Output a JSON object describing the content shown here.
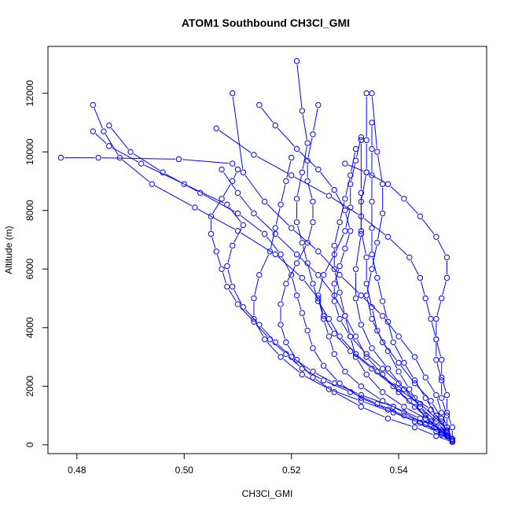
{
  "chart_data": {
    "type": "scatter",
    "title": "ATOM1 Southbound CH3Cl_GMI",
    "xlabel": "CH3Cl_GMI",
    "ylabel": "Altitude (m)",
    "xlim": [
      0.4746,
      0.5564
    ],
    "ylim": [
      -300,
      13600
    ],
    "xticks": [
      0.48,
      0.5,
      0.52,
      0.54
    ],
    "xtick_labels": [
      "0.48",
      "0.50",
      "0.52",
      "0.54"
    ],
    "yticks": [
      0,
      2000,
      4000,
      6000,
      8000,
      10000,
      12000
    ],
    "ytick_labels": [
      "0",
      "2000",
      "4000",
      "6000",
      "8000",
      "10000",
      "12000"
    ],
    "series_color": "#0000ff",
    "series": [
      {
        "x": [
          0.55,
          0.549,
          0.546,
          0.541,
          0.536,
          0.531,
          0.526,
          0.522,
          0.519,
          0.516,
          0.513,
          0.51,
          0.508,
          0.507,
          0.506,
          0.505,
          0.505,
          0.507,
          0.509,
          0.51,
          0.509,
          0.499,
          0.484,
          0.477
        ],
        "y": [
          150,
          400,
          700,
          1000,
          1400,
          1800,
          2200,
          2600,
          3100,
          3600,
          4200,
          4800,
          5400,
          6000,
          6600,
          7200,
          7800,
          8400,
          9000,
          9400,
          9600,
          9750,
          9800,
          9800
        ]
      },
      {
        "x": [
          0.55,
          0.548,
          0.544,
          0.539,
          0.533,
          0.528,
          0.524,
          0.52,
          0.517,
          0.514,
          0.511,
          0.509,
          0.508,
          0.509,
          0.511,
          0.508,
          0.5,
          0.492,
          0.486,
          0.483
        ],
        "y": [
          200,
          500,
          900,
          1300,
          1700,
          2100,
          2500,
          3000,
          3500,
          4100,
          4700,
          5400,
          6100,
          6800,
          7500,
          8200,
          8900,
          9600,
          10200,
          10700
        ]
      },
      {
        "x": [
          0.55,
          0.547,
          0.543,
          0.538,
          0.533,
          0.529,
          0.526,
          0.524,
          0.523,
          0.522,
          0.521,
          0.52,
          0.518,
          0.515,
          0.51,
          0.503,
          0.496,
          0.49,
          0.486
        ],
        "y": [
          150,
          450,
          800,
          1200,
          1600,
          2100,
          2700,
          3300,
          3900,
          4500,
          5100,
          5800,
          6500,
          7200,
          7900,
          8600,
          9300,
          10000,
          10900
        ]
      },
      {
        "x": [
          0.55,
          0.548,
          0.545,
          0.541,
          0.537,
          0.533,
          0.53,
          0.528,
          0.527,
          0.526,
          0.525,
          0.522,
          0.517,
          0.51,
          0.502,
          0.494,
          0.488,
          0.485,
          0.483
        ],
        "y": [
          100,
          350,
          700,
          1100,
          1500,
          2000,
          2500,
          3100,
          3700,
          4300,
          5000,
          5700,
          6500,
          7300,
          8100,
          8900,
          9800,
          10700,
          11600
        ]
      },
      {
        "x": [
          0.55,
          0.549,
          0.547,
          0.544,
          0.54,
          0.536,
          0.532,
          0.529,
          0.527,
          0.525,
          0.524,
          0.523,
          0.522,
          0.521,
          0.521,
          0.522,
          0.523,
          0.522,
          0.521
        ],
        "y": [
          200,
          500,
          900,
          1400,
          1900,
          2500,
          3100,
          3700,
          4300,
          4900,
          5500,
          6200,
          6900,
          7600,
          8400,
          9300,
          10300,
          11400,
          13100
        ]
      },
      {
        "x": [
          0.55,
          0.548,
          0.546,
          0.544,
          0.542,
          0.54,
          0.538,
          0.536,
          0.535,
          0.534,
          0.534,
          0.533,
          0.533,
          0.534,
          0.534,
          0.534
        ],
        "y": [
          150,
          400,
          800,
          1300,
          1900,
          2500,
          3200,
          3900,
          4700,
          5500,
          6400,
          7300,
          8300,
          9300,
          10400,
          12000
        ]
      },
      {
        "x": [
          0.55,
          0.549,
          0.548,
          0.546,
          0.543,
          0.54,
          0.537,
          0.535,
          0.534,
          0.535,
          0.536,
          0.537,
          0.537,
          0.536,
          0.535
        ],
        "y": [
          150,
          400,
          900,
          1500,
          2100,
          2800,
          3500,
          4300,
          5100,
          6000,
          6900,
          7900,
          8900,
          10000,
          12000
        ]
      },
      {
        "x": [
          0.55,
          0.549,
          0.548,
          0.547,
          0.545,
          0.543,
          0.54,
          0.537,
          0.533,
          0.529,
          0.525,
          0.52,
          0.515,
          0.511,
          0.509
        ],
        "y": [
          200,
          600,
          1100,
          1700,
          2300,
          3000,
          3700,
          4400,
          5100,
          5800,
          6600,
          7400,
          8300,
          9300,
          12000
        ]
      },
      {
        "x": [
          0.55,
          0.549,
          0.549,
          0.548,
          0.548,
          0.547,
          0.547,
          0.546,
          0.545,
          0.544,
          0.542,
          0.538,
          0.533,
          0.527,
          0.52,
          0.513,
          0.506
        ],
        "y": [
          150,
          500,
          1000,
          1600,
          2200,
          2900,
          3600,
          4300,
          5000,
          5700,
          6400,
          7100,
          7800,
          8500,
          9200,
          9900,
          10800
        ]
      },
      {
        "x": [
          0.55,
          0.549,
          0.547,
          0.545,
          0.542,
          0.539,
          0.535,
          0.531,
          0.528,
          0.526,
          0.525,
          0.526,
          0.528,
          0.53,
          0.531,
          0.531,
          0.532,
          0.533
        ],
        "y": [
          100,
          300,
          600,
          1000,
          1500,
          2000,
          2600,
          3200,
          3800,
          4400,
          5100,
          5800,
          6500,
          7300,
          8100,
          8900,
          9700,
          10500
        ]
      },
      {
        "x": [
          0.55,
          0.549,
          0.548,
          0.546,
          0.543,
          0.54,
          0.537,
          0.534,
          0.531,
          0.529,
          0.528,
          0.528,
          0.529,
          0.53,
          0.531,
          0.53,
          0.528,
          0.525,
          0.521,
          0.517,
          0.514
        ],
        "y": [
          150,
          450,
          800,
          1200,
          1600,
          2100,
          2600,
          3100,
          3700,
          4300,
          4900,
          5500,
          6100,
          6700,
          7300,
          8000,
          8700,
          9400,
          10100,
          10900,
          11600
        ]
      },
      {
        "x": [
          0.55,
          0.548,
          0.545,
          0.541,
          0.537,
          0.534,
          0.532,
          0.531,
          0.53,
          0.528,
          0.525,
          0.521,
          0.517,
          0.513,
          0.51,
          0.507
        ],
        "y": [
          200,
          500,
          900,
          1300,
          1800,
          2400,
          3000,
          3700,
          4400,
          5100,
          5800,
          6500,
          7200,
          7900,
          8600,
          9400
        ]
      },
      {
        "x": [
          0.55,
          0.55,
          0.549,
          0.549,
          0.548,
          0.548,
          0.547,
          0.547,
          0.548,
          0.549,
          0.549,
          0.547,
          0.544,
          0.541,
          0.538,
          0.534,
          0.53
        ],
        "y": [
          150,
          600,
          1100,
          1700,
          2300,
          2900,
          3600,
          4300,
          5000,
          5700,
          6400,
          7100,
          7800,
          8400,
          8900,
          9300,
          9600
        ]
      },
      {
        "x": [
          0.55,
          0.547,
          0.543,
          0.538,
          0.533,
          0.528,
          0.524,
          0.521,
          0.519,
          0.518,
          0.518,
          0.519,
          0.521,
          0.523,
          0.524,
          0.524,
          0.523,
          0.523,
          0.524,
          0.525
        ],
        "y": [
          100,
          300,
          600,
          900,
          1300,
          1800,
          2300,
          2900,
          3500,
          4100,
          4800,
          5500,
          6200,
          6900,
          7600,
          8300,
          9000,
          9700,
          10600,
          11600
        ]
      },
      {
        "x": [
          0.55,
          0.548,
          0.546,
          0.543,
          0.54,
          0.537,
          0.534,
          0.532,
          0.53,
          0.529,
          0.528,
          0.528,
          0.529,
          0.53,
          0.531,
          0.532
        ],
        "y": [
          150,
          400,
          800,
          1300,
          1800,
          2400,
          3000,
          3700,
          4400,
          5200,
          6000,
          6800,
          7600,
          8400,
          9200,
          10100
        ]
      },
      {
        "x": [
          0.55,
          0.549,
          0.547,
          0.545,
          0.543,
          0.541,
          0.539,
          0.538,
          0.537,
          0.536,
          0.535,
          0.535,
          0.535,
          0.535,
          0.535,
          0.535
        ],
        "y": [
          150,
          500,
          1000,
          1600,
          2200,
          2800,
          3500,
          4200,
          4900,
          5700,
          6500,
          7400,
          8300,
          9200,
          10100,
          11000
        ]
      },
      {
        "x": [
          0.55,
          0.549,
          0.547,
          0.544,
          0.541,
          0.538,
          0.535,
          0.533,
          0.532,
          0.532,
          0.533,
          0.533,
          0.533
        ],
        "y": [
          150,
          400,
          800,
          1300,
          1900,
          2600,
          3300,
          4100,
          5000,
          6000,
          7200,
          8600,
          10400
        ]
      },
      {
        "x": [
          0.55,
          0.548,
          0.544,
          0.539,
          0.533,
          0.527,
          0.522,
          0.518,
          0.515,
          0.513,
          0.513,
          0.514,
          0.516,
          0.517,
          0.518,
          0.519,
          0.52
        ],
        "y": [
          200,
          450,
          750,
          1100,
          1500,
          1900,
          2400,
          3000,
          3600,
          4300,
          5000,
          5800,
          6600,
          7400,
          8200,
          9000,
          9800
        ]
      }
    ]
  }
}
